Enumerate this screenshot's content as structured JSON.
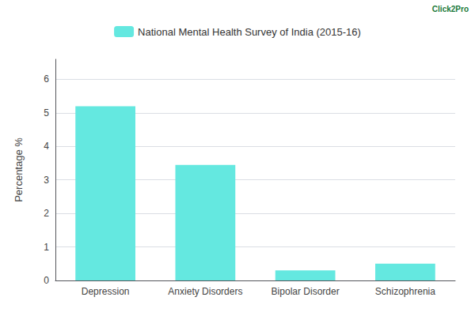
{
  "chart_data": {
    "type": "bar",
    "categories": [
      "Depression",
      "Anxiety Disorders",
      "Bipolar Disorder",
      "Schizophrenia"
    ],
    "series": [
      {
        "name": "National Mental Health Survey of India (2015-16)",
        "color": "#64E8E0",
        "values": [
          5.2,
          3.45,
          0.3,
          0.5
        ]
      }
    ],
    "ylabel": "Percentage %",
    "ylim": [
      0,
      6.6
    ],
    "yticks": [
      0,
      1,
      2,
      3,
      4,
      5,
      6
    ],
    "grid": true,
    "legend": "top",
    "annotations": [
      "Click2Pro"
    ]
  }
}
